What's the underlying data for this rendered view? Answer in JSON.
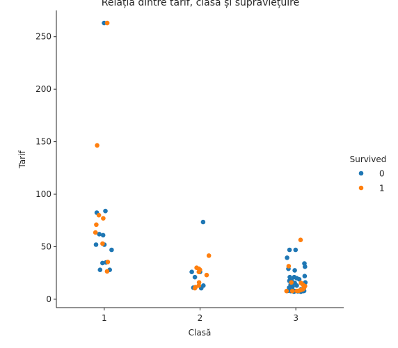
{
  "chart_data": {
    "type": "scatter",
    "title": "Relația dintre tarif, clasă și supraviețuire",
    "xlabel": "Clasă",
    "ylabel": "Tarif",
    "categories": [
      "1",
      "2",
      "3"
    ],
    "ylim": [
      -8,
      275
    ],
    "yticks": [
      0,
      50,
      100,
      150,
      200,
      250
    ],
    "grid": false,
    "legend": {
      "title": "Survived",
      "placement": "right"
    },
    "series": [
      {
        "name": "0",
        "color": "#1f77b4",
        "points": [
          {
            "x": 1,
            "y": 263
          },
          {
            "x": 1,
            "y": 84
          },
          {
            "x": 1,
            "y": 82.5
          },
          {
            "x": 1,
            "y": 62
          },
          {
            "x": 1,
            "y": 61
          },
          {
            "x": 1,
            "y": 52
          },
          {
            "x": 1,
            "y": 52
          },
          {
            "x": 1,
            "y": 47
          },
          {
            "x": 1,
            "y": 35
          },
          {
            "x": 1,
            "y": 34.5
          },
          {
            "x": 1,
            "y": 28
          },
          {
            "x": 1,
            "y": 28
          },
          {
            "x": 2,
            "y": 73.5
          },
          {
            "x": 2,
            "y": 26
          },
          {
            "x": 2,
            "y": 26
          },
          {
            "x": 2,
            "y": 21
          },
          {
            "x": 2,
            "y": 13
          },
          {
            "x": 2,
            "y": 11
          },
          {
            "x": 2,
            "y": 10.5
          },
          {
            "x": 3,
            "y": 47
          },
          {
            "x": 3,
            "y": 47
          },
          {
            "x": 3,
            "y": 39.5
          },
          {
            "x": 3,
            "y": 34
          },
          {
            "x": 3,
            "y": 31
          },
          {
            "x": 3,
            "y": 29
          },
          {
            "x": 3,
            "y": 27.5
          },
          {
            "x": 3,
            "y": 22
          },
          {
            "x": 3,
            "y": 21
          },
          {
            "x": 3,
            "y": 21
          },
          {
            "x": 3,
            "y": 20
          },
          {
            "x": 3,
            "y": 19
          },
          {
            "x": 3,
            "y": 18
          },
          {
            "x": 3,
            "y": 17.5
          },
          {
            "x": 3,
            "y": 16
          },
          {
            "x": 3,
            "y": 15.5
          },
          {
            "x": 3,
            "y": 14
          },
          {
            "x": 3,
            "y": 13
          },
          {
            "x": 3,
            "y": 12
          },
          {
            "x": 3,
            "y": 11
          },
          {
            "x": 3,
            "y": 9.5
          },
          {
            "x": 3,
            "y": 8.5
          },
          {
            "x": 3,
            "y": 8
          },
          {
            "x": 3,
            "y": 8
          },
          {
            "x": 3,
            "y": 8
          },
          {
            "x": 3,
            "y": 7.9
          },
          {
            "x": 3,
            "y": 7.8
          },
          {
            "x": 3,
            "y": 7.8
          },
          {
            "x": 3,
            "y": 7.75
          },
          {
            "x": 3,
            "y": 7.5
          },
          {
            "x": 3,
            "y": 7.25
          },
          {
            "x": 3,
            "y": 7.2
          }
        ]
      },
      {
        "name": "1",
        "color": "#ff7f0e",
        "points": [
          {
            "x": 1,
            "y": 263
          },
          {
            "x": 1,
            "y": 146.5
          },
          {
            "x": 1,
            "y": 80
          },
          {
            "x": 1,
            "y": 77
          },
          {
            "x": 1,
            "y": 71
          },
          {
            "x": 1,
            "y": 63.5
          },
          {
            "x": 1,
            "y": 53
          },
          {
            "x": 1,
            "y": 35.5
          },
          {
            "x": 1,
            "y": 26.5
          },
          {
            "x": 2,
            "y": 41.5
          },
          {
            "x": 2,
            "y": 30
          },
          {
            "x": 2,
            "y": 29
          },
          {
            "x": 2,
            "y": 28
          },
          {
            "x": 2,
            "y": 26
          },
          {
            "x": 2,
            "y": 23
          },
          {
            "x": 2,
            "y": 16
          },
          {
            "x": 2,
            "y": 13
          },
          {
            "x": 2,
            "y": 11.5
          },
          {
            "x": 2,
            "y": 10.5
          },
          {
            "x": 3,
            "y": 56.5
          },
          {
            "x": 3,
            "y": 31.5
          },
          {
            "x": 3,
            "y": 16
          },
          {
            "x": 3,
            "y": 15.5
          },
          {
            "x": 3,
            "y": 14
          },
          {
            "x": 3,
            "y": 12.5
          },
          {
            "x": 3,
            "y": 11
          },
          {
            "x": 3,
            "y": 9.5
          },
          {
            "x": 3,
            "y": 8.7
          },
          {
            "x": 3,
            "y": 8
          },
          {
            "x": 3,
            "y": 7.9
          },
          {
            "x": 3,
            "y": 7.8
          },
          {
            "x": 3,
            "y": 7.75
          }
        ]
      }
    ]
  }
}
